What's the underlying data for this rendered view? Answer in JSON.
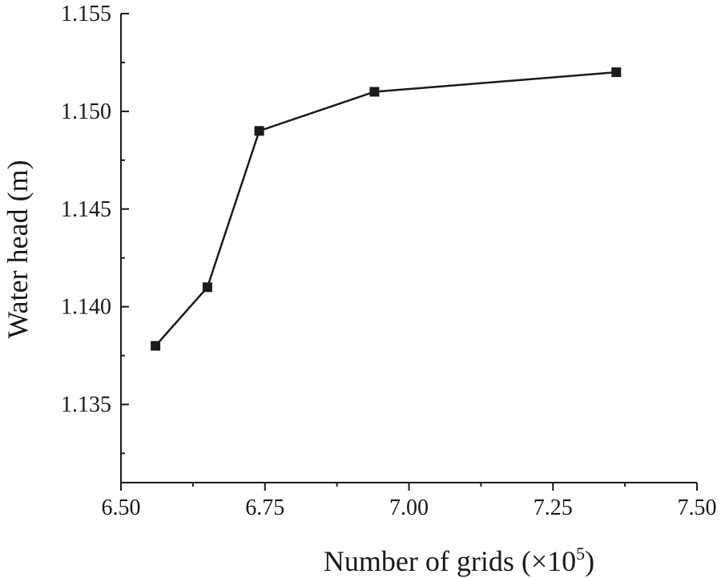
{
  "chart_data": {
    "type": "line",
    "title": "",
    "xlabel": "Number of grids (×10",
    "xlabel_sup": "5",
    "xlabel_close": ")",
    "ylabel": "Water head (m)",
    "xlim": [
      6.5,
      7.5
    ],
    "ylim": [
      1.131,
      1.155
    ],
    "x_ticks": [
      6.5,
      6.75,
      7.0,
      7.25,
      7.5
    ],
    "x_tick_labels": [
      "6.50",
      "6.75",
      "7.00",
      "7.25",
      "7.50"
    ],
    "x_minor_ticks": [
      6.625,
      6.875,
      7.125,
      7.375
    ],
    "y_ticks": [
      1.135,
      1.14,
      1.145,
      1.15,
      1.155
    ],
    "y_tick_labels": [
      "1.135",
      "1.140",
      "1.145",
      "1.150",
      "1.155"
    ],
    "y_minor_ticks": [
      1.1325,
      1.1375,
      1.1425,
      1.1475,
      1.1525
    ],
    "grid": false,
    "series": [
      {
        "marker": "square",
        "color": "#1a1a1a",
        "x": [
          6.56,
          6.65,
          6.74,
          6.94,
          7.36
        ],
        "y": [
          1.138,
          1.141,
          1.149,
          1.151,
          1.152
        ]
      }
    ]
  }
}
